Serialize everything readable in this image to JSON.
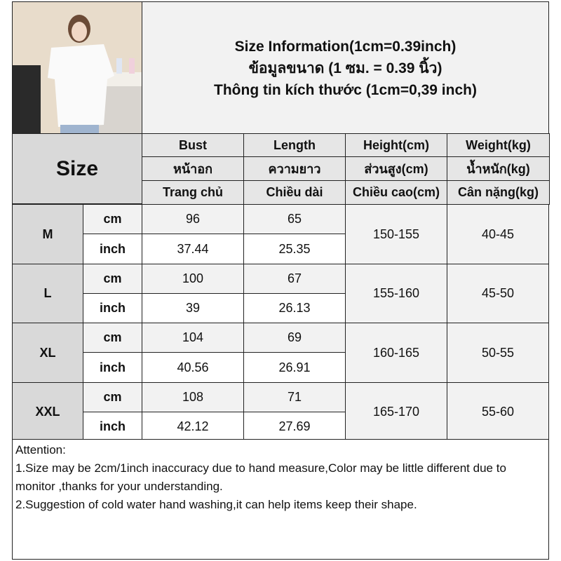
{
  "title": {
    "line1": "Size Information(1cm=0.39inch)",
    "line2": "ข้อมูลขนาด (1 ซม. = 0.39 นิ้ว)",
    "line3": "Thông tin kích thước (1cm=0,39 inch)"
  },
  "size_label": "Size",
  "headers": [
    {
      "en": "Bust",
      "th": "หน้าอก",
      "vi": "Trang chủ"
    },
    {
      "en": "Length",
      "th": "ความยาว",
      "vi": "Chiều dài"
    },
    {
      "en": "Height(cm)",
      "th": "ส่วนสูง(cm)",
      "vi": "Chiều cao(cm)"
    },
    {
      "en": "Weight(kg)",
      "th": "น้ำหนัก(kg)",
      "vi": "Cân nặng(kg)"
    }
  ],
  "units": {
    "cm": "cm",
    "inch": "inch"
  },
  "rows": [
    {
      "size": "M",
      "bust_cm": "96",
      "length_cm": "65",
      "bust_in": "37.44",
      "length_in": "25.35",
      "height": "150-155",
      "weight": "40-45"
    },
    {
      "size": "L",
      "bust_cm": "100",
      "length_cm": "67",
      "bust_in": "39",
      "length_in": "26.13",
      "height": "155-160",
      "weight": "45-50"
    },
    {
      "size": "XL",
      "bust_cm": "104",
      "length_cm": "69",
      "bust_in": "40.56",
      "length_in": "26.91",
      "height": "160-165",
      "weight": "50-55"
    },
    {
      "size": "XXL",
      "bust_cm": "108",
      "length_cm": "71",
      "bust_in": "42.12",
      "length_in": "27.69",
      "height": "165-170",
      "weight": "55-60"
    }
  ],
  "notes": {
    "heading": "Attention:",
    "line1": "1.Size may be 2cm/1inch inaccuracy due to hand measure,Color may be little different due to monitor ,thanks for your understanding.",
    "line2": "2.Suggestion of cold water hand washing,it can help items keep their shape."
  }
}
